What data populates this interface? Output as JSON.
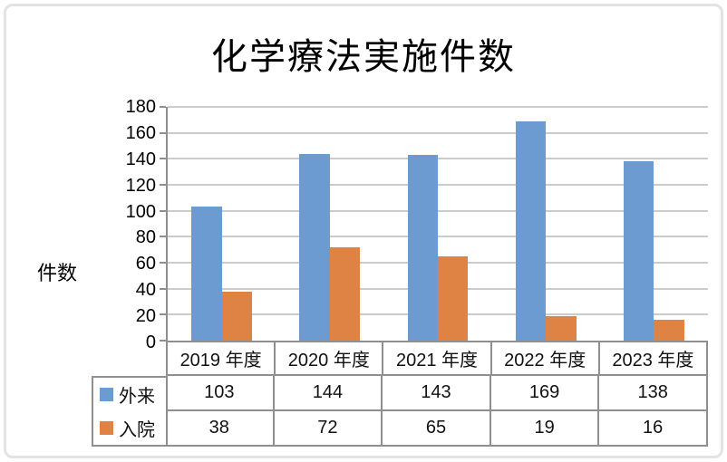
{
  "chart_data": {
    "type": "bar",
    "title": "化学療法実施件数",
    "ylabel": "件数",
    "xlabel": "",
    "categories": [
      "2019 年度",
      "2020 年度",
      "2021 年度",
      "2022 年度",
      "2023 年度"
    ],
    "series": [
      {
        "name": "外来",
        "color": "#6c9bd2",
        "values": [
          103,
          144,
          143,
          169,
          138
        ]
      },
      {
        "name": "入院",
        "color": "#df8344",
        "values": [
          38,
          72,
          65,
          19,
          16
        ]
      }
    ],
    "ylim": [
      0,
      180
    ],
    "ytick_step": 20,
    "yticks": [
      0,
      20,
      40,
      60,
      80,
      100,
      120,
      140,
      160,
      180
    ],
    "grid": true,
    "legend_position": "data-table-left",
    "data_table": true,
    "style_colors": {
      "axis": "#8f8f8f",
      "gridline": "#cbcbcb",
      "frame_border": "#e3e3e3",
      "text": "#000000",
      "background": "#ffffff"
    }
  }
}
